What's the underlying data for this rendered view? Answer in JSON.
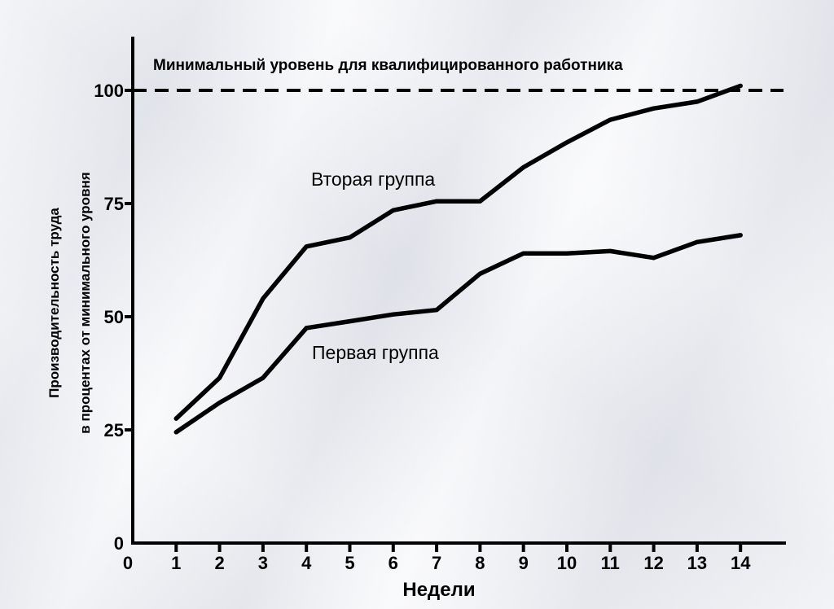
{
  "chart_data": {
    "type": "line",
    "title": "",
    "xlabel": "Недели",
    "ylabel_lines": [
      "Производительность труда",
      "в процентах от минимального уровня"
    ],
    "x": [
      1,
      2,
      3,
      4,
      5,
      6,
      7,
      8,
      9,
      10,
      11,
      12,
      13,
      14
    ],
    "x_ticks": [
      0,
      1,
      2,
      3,
      4,
      5,
      6,
      7,
      8,
      9,
      10,
      11,
      12,
      13,
      14
    ],
    "y_ticks": [
      0,
      25,
      50,
      75,
      100
    ],
    "xlim": [
      0,
      14.8
    ],
    "ylim": [
      0,
      112
    ],
    "series": [
      {
        "name": "Вторая группа",
        "color": "#000000",
        "values": [
          27.5,
          36.5,
          54,
          65.5,
          67.5,
          73.5,
          75.5,
          75.5,
          83,
          88.5,
          93.5,
          96,
          97.5,
          101
        ]
      },
      {
        "name": "Первая группа",
        "color": "#000000",
        "values": [
          24.5,
          31,
          36.5,
          47.5,
          49,
          50.5,
          51.5,
          59.5,
          64,
          64,
          64.5,
          63,
          66.5,
          68
        ]
      }
    ],
    "reference_line": {
      "y": 100,
      "style": "dashed",
      "label": "Минимальный уровень для квалифицированного работника"
    },
    "grid": false,
    "legend": "inline-labels"
  }
}
